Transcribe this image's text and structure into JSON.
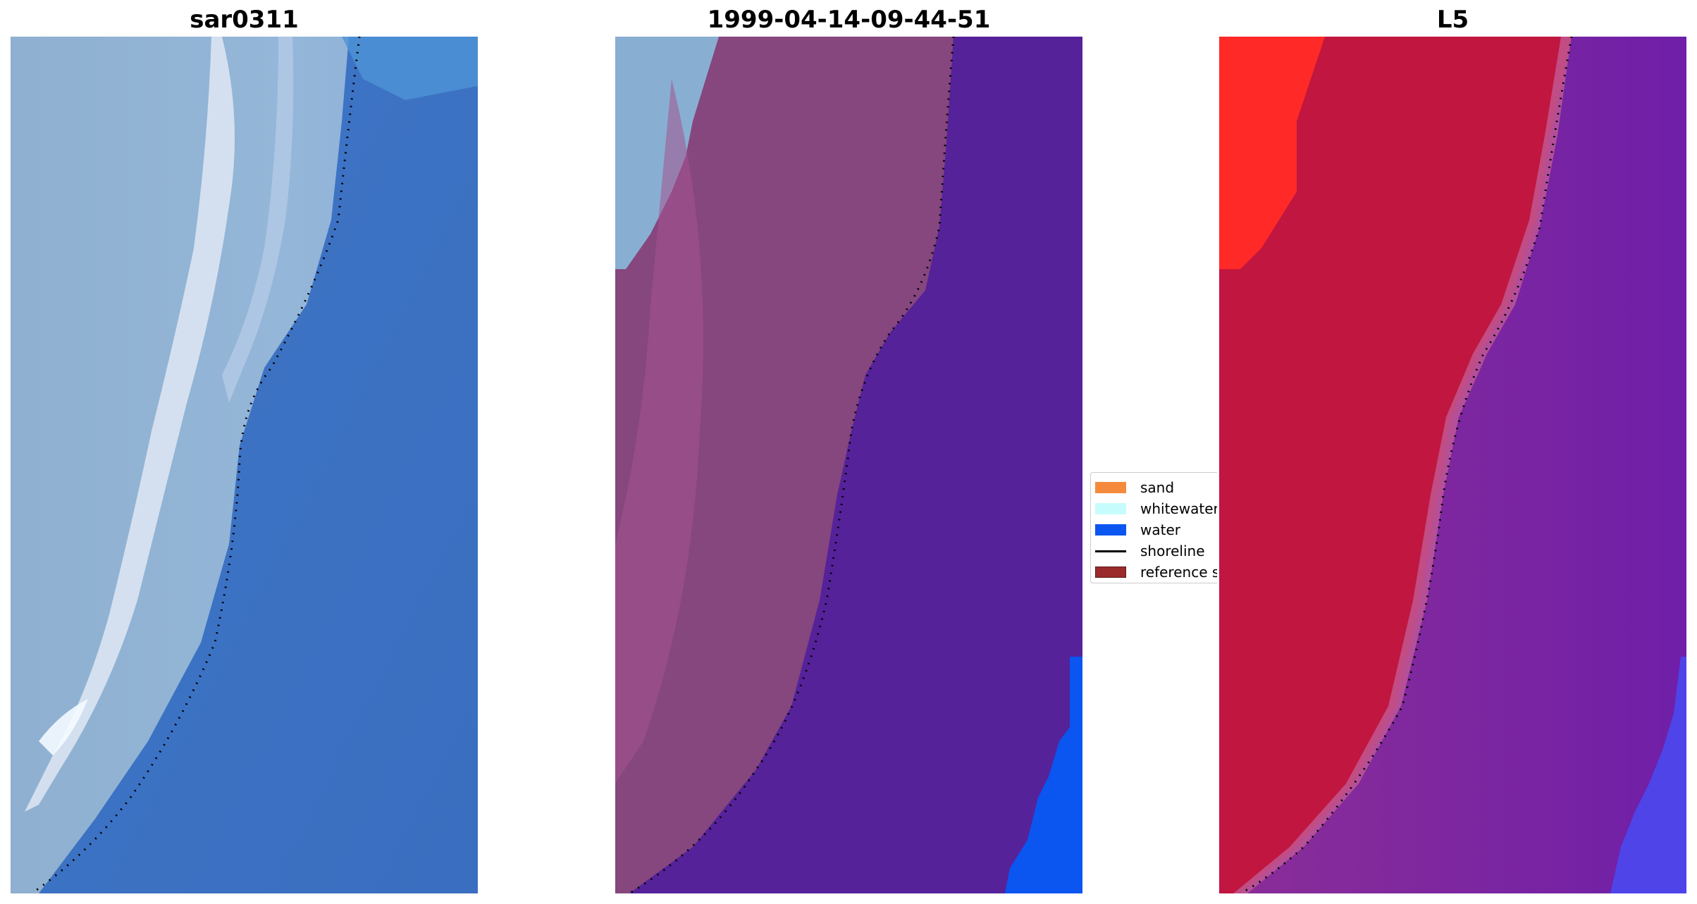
{
  "panels": [
    {
      "title": "sar0311",
      "kind": "rgb"
    },
    {
      "title": "1999-04-14-09-44-51",
      "kind": "classified"
    },
    {
      "title": "L5",
      "kind": "index"
    }
  ],
  "legend": {
    "items": [
      {
        "label": "sand",
        "type": "patch",
        "color": "#f58a3c"
      },
      {
        "label": "whitewater",
        "type": "patch",
        "color": "#c7fcfc"
      },
      {
        "label": "water",
        "type": "patch",
        "color": "#0b55f0"
      },
      {
        "label": "shoreline",
        "type": "line",
        "color": "#000000"
      },
      {
        "label": "reference s",
        "type": "patch",
        "color": "#9b2a2a"
      }
    ]
  },
  "colors": {
    "rgb_land": "#8aaed4",
    "rgb_water": "#3d72c3",
    "rgb_whitewater": "#dde8f4",
    "class_land": "#8a3f7e",
    "class_water": "#55229a",
    "class_water_bright": "#0b55f0",
    "class_sky": "#86aed2",
    "index_land": "#c2163d",
    "index_water": "#7a2aa8",
    "index_bright": "#ff2a28",
    "index_blue": "#4a48f0",
    "shoreline": "#000000"
  }
}
